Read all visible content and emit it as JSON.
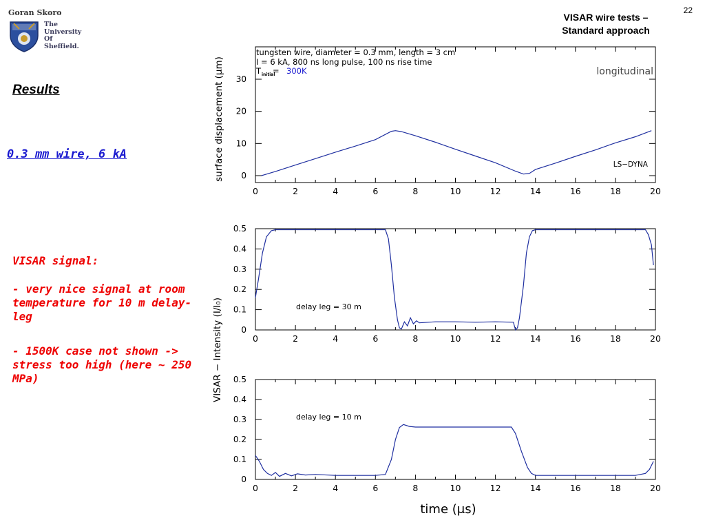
{
  "header": {
    "author": "Goran Skoro",
    "university_lines": [
      "The",
      "University",
      "Of",
      "Sheffield."
    ],
    "slide_title_line1": "VISAR wire tests –",
    "slide_title_line2": "Standard approach",
    "page_number": "22"
  },
  "left": {
    "results_heading": "Results",
    "wire_label": "0.3 mm wire, 6 kA",
    "visar_heading": "VISAR signal:",
    "bullets": [
      "- very nice signal at room temperature for 10 m delay-leg",
      "- 1500K case not shown -> stress too high (here ~ 250 MPa)"
    ]
  },
  "colors": {
    "curve": "#1f2fa0",
    "accent_red": "#ee0000",
    "accent_blue": "#1a1ad0"
  },
  "chart_data": [
    {
      "type": "line",
      "ylabel": "surface displacement (μm)",
      "xlim": [
        0,
        20
      ],
      "ylim": [
        0,
        30
      ],
      "x_ticks": [
        "0",
        "2",
        "4",
        "6",
        "8",
        "10",
        "12",
        "14",
        "16",
        "18",
        "20"
      ],
      "y_ticks": [
        "0",
        "10",
        "20",
        "30"
      ],
      "annotations": {
        "line1": "tungsten wire, diameter = 0.3 mm, length = 3 cm",
        "line2": "I = 6 kA, 800 ns long pulse, 100 ns rise time",
        "temp_prefix": "T",
        "temp_sub": "initial",
        "temp_eq": "= ",
        "temp_value": "300K",
        "mode": "longitudinal",
        "code": "LS−DYNA"
      },
      "series": [
        {
          "x": [
            0.3,
            1,
            2,
            3,
            4,
            5,
            6,
            6.8,
            7,
            7.3,
            8,
            9,
            10,
            11,
            12,
            13,
            13.4,
            13.7,
            14,
            15,
            16,
            17,
            18,
            19,
            19.8
          ],
          "y": [
            0,
            1.3,
            3.3,
            5.3,
            7.3,
            9.2,
            11.2,
            13.8,
            14,
            13.7,
            12.4,
            10.4,
            8.2,
            6.1,
            4.0,
            1.4,
            0.5,
            0.7,
            1.9,
            3.9,
            6.0,
            8.0,
            10.2,
            12.1,
            14
          ]
        }
      ]
    },
    {
      "type": "line",
      "ylabel": "VISAR − Intensity (I/I₀)",
      "xlabel": "time (μs)",
      "xlim": [
        0,
        20
      ],
      "ylim": [
        0,
        0.5
      ],
      "x_ticks": [
        "0",
        "2",
        "4",
        "6",
        "8",
        "10",
        "12",
        "14",
        "16",
        "18",
        "20"
      ],
      "y_ticks": [
        "0",
        "0.1",
        "0.2",
        "0.3",
        "0.4",
        "0.5"
      ],
      "panels": [
        {
          "label": "delay leg = 30 m",
          "x": [
            0,
            0.15,
            0.35,
            0.55,
            0.8,
            1.0,
            6.5,
            6.65,
            6.8,
            6.95,
            7.1,
            7.2,
            7.3,
            7.45,
            7.6,
            7.75,
            7.9,
            8.05,
            8.2,
            9,
            10,
            11,
            12,
            12.9,
            13.0,
            13.1,
            13.2,
            13.4,
            13.55,
            13.7,
            13.85,
            14.0,
            19.5,
            19.65,
            19.8,
            19.9
          ],
          "y": [
            0.16,
            0.25,
            0.38,
            0.46,
            0.49,
            0.495,
            0.495,
            0.45,
            0.32,
            0.16,
            0.05,
            0.01,
            0.005,
            0.04,
            0.02,
            0.06,
            0.03,
            0.045,
            0.035,
            0.04,
            0.04,
            0.038,
            0.04,
            0.038,
            0.0,
            0.01,
            0.06,
            0.22,
            0.38,
            0.46,
            0.49,
            0.495,
            0.495,
            0.47,
            0.42,
            0.32
          ]
        },
        {
          "label": "delay leg = 10 m",
          "x": [
            0,
            0.2,
            0.4,
            0.6,
            0.8,
            1.0,
            1.2,
            1.5,
            1.8,
            2.1,
            2.5,
            3,
            4,
            5,
            6,
            6.5,
            6.8,
            7.0,
            7.2,
            7.4,
            7.7,
            8,
            9,
            10,
            11,
            12,
            12.8,
            13.0,
            13.3,
            13.6,
            13.8,
            14.0,
            14.5,
            15,
            16,
            17,
            18,
            19,
            19.5,
            19.7,
            19.9
          ],
          "y": [
            0.12,
            0.09,
            0.05,
            0.03,
            0.02,
            0.035,
            0.015,
            0.03,
            0.018,
            0.028,
            0.022,
            0.025,
            0.02,
            0.02,
            0.02,
            0.025,
            0.1,
            0.2,
            0.26,
            0.275,
            0.265,
            0.262,
            0.262,
            0.262,
            0.262,
            0.262,
            0.262,
            0.23,
            0.14,
            0.06,
            0.03,
            0.02,
            0.02,
            0.02,
            0.02,
            0.02,
            0.02,
            0.02,
            0.03,
            0.05,
            0.09
          ]
        }
      ]
    }
  ]
}
